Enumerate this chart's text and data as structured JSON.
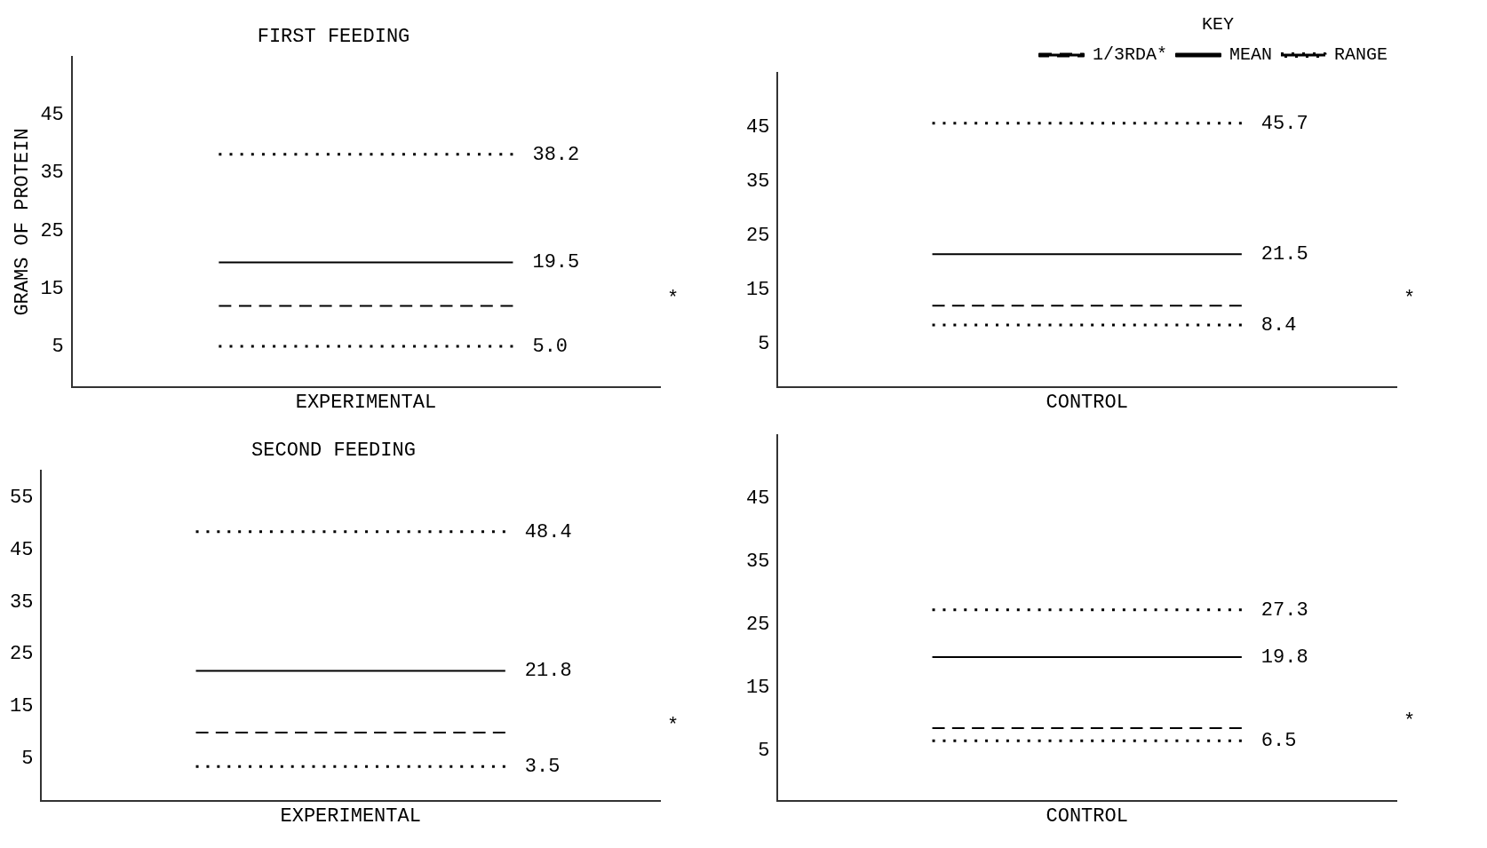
{
  "chart_data": [
    {
      "type": "line",
      "title": "FIRST FEEDING",
      "ylabel": "GRAMS OF PROTEIN",
      "xlabel": "EXPERIMENTAL",
      "categories": [
        null,
        null
      ],
      "ylim": [
        -2,
        55
      ],
      "yticks": [
        5,
        15,
        25,
        35,
        45
      ],
      "tick_labels": "y",
      "grid": false,
      "legend": false,
      "series": [
        {
          "color": "#000000",
          "line_style": "dotted",
          "values": [
            38.2,
            38.2
          ],
          "value_labels": [
            null,
            "38.2"
          ]
        },
        {
          "color": "#000000",
          "line_style": "solid",
          "values": [
            19.5,
            19.5
          ],
          "value_labels": [
            null,
            "19.5"
          ]
        },
        {
          "color": "#000000",
          "line_style": "dashed",
          "values": [
            12,
            12
          ]
        },
        {
          "color": "#000000",
          "line_style": "dotted",
          "values": [
            5.0,
            5.0
          ],
          "value_labels": [
            null,
            "5.0"
          ]
        }
      ],
      "annotations": [
        "*"
      ]
    },
    {
      "type": "line",
      "xlabel": "CONTROL",
      "categories": [
        null,
        null
      ],
      "ylim": [
        -3,
        55
      ],
      "yticks": [
        5,
        15,
        25,
        35,
        45
      ],
      "tick_labels": "y",
      "grid": false,
      "legend": "top right",
      "legend_title": "KEY",
      "series": [
        {
          "name": "1/3RDA*",
          "color": "#000000",
          "line_style": "dashed",
          "values": [
            12,
            12
          ]
        },
        {
          "name": "MEAN",
          "color": "#000000",
          "line_style": "solid",
          "values": [
            21.5,
            21.5
          ],
          "value_labels": [
            null,
            "21.5"
          ]
        },
        {
          "name": "RANGE",
          "color": "#000000",
          "line_style": "dotted",
          "values": [
            45.7,
            45.7
          ],
          "value_labels": [
            null,
            "45.7"
          ]
        },
        {
          "color": "#000000",
          "line_style": "dotted",
          "values": [
            8.4,
            8.4
          ],
          "value_labels": [
            null,
            "8.4"
          ]
        }
      ],
      "annotations": [
        "*"
      ]
    },
    {
      "type": "line",
      "title": "SECOND FEEDING",
      "xlabel": "EXPERIMENTAL",
      "categories": [
        null,
        null
      ],
      "ylim": [
        -3,
        60
      ],
      "yticks": [
        5,
        15,
        25,
        35,
        45,
        55
      ],
      "tick_labels": "y",
      "grid": false,
      "legend": false,
      "series": [
        {
          "color": "#000000",
          "line_style": "dotted",
          "values": [
            48.4,
            48.4
          ],
          "value_labels": [
            null,
            "48.4"
          ]
        },
        {
          "color": "#000000",
          "line_style": "solid",
          "values": [
            21.8,
            21.8
          ],
          "value_labels": [
            null,
            "21.8"
          ]
        },
        {
          "color": "#000000",
          "line_style": "dashed",
          "values": [
            10,
            10
          ]
        },
        {
          "color": "#000000",
          "line_style": "dotted",
          "values": [
            3.5,
            3.5
          ],
          "value_labels": [
            null,
            "3.5"
          ]
        }
      ],
      "annotations": [
        "*"
      ]
    },
    {
      "type": "line",
      "xlabel": "CONTROL",
      "categories": [
        null,
        null
      ],
      "ylim": [
        -3,
        55
      ],
      "yticks": [
        5,
        15,
        25,
        35,
        45
      ],
      "tick_labels": "y",
      "grid": false,
      "legend": false,
      "series": [
        {
          "color": "#000000",
          "line_style": "dotted",
          "values": [
            27.3,
            27.3
          ],
          "value_labels": [
            null,
            "27.3"
          ]
        },
        {
          "color": "#000000",
          "line_style": "solid",
          "values": [
            19.8,
            19.8
          ],
          "value_labels": [
            null,
            "19.8"
          ]
        },
        {
          "color": "#000000",
          "line_style": "dashed",
          "values": [
            8.5,
            8.5
          ]
        },
        {
          "color": "#000000",
          "line_style": "dotted",
          "values": [
            6.5,
            6.5
          ],
          "value_labels": [
            null,
            "6.5"
          ]
        }
      ],
      "annotations": [
        "*"
      ]
    }
  ]
}
